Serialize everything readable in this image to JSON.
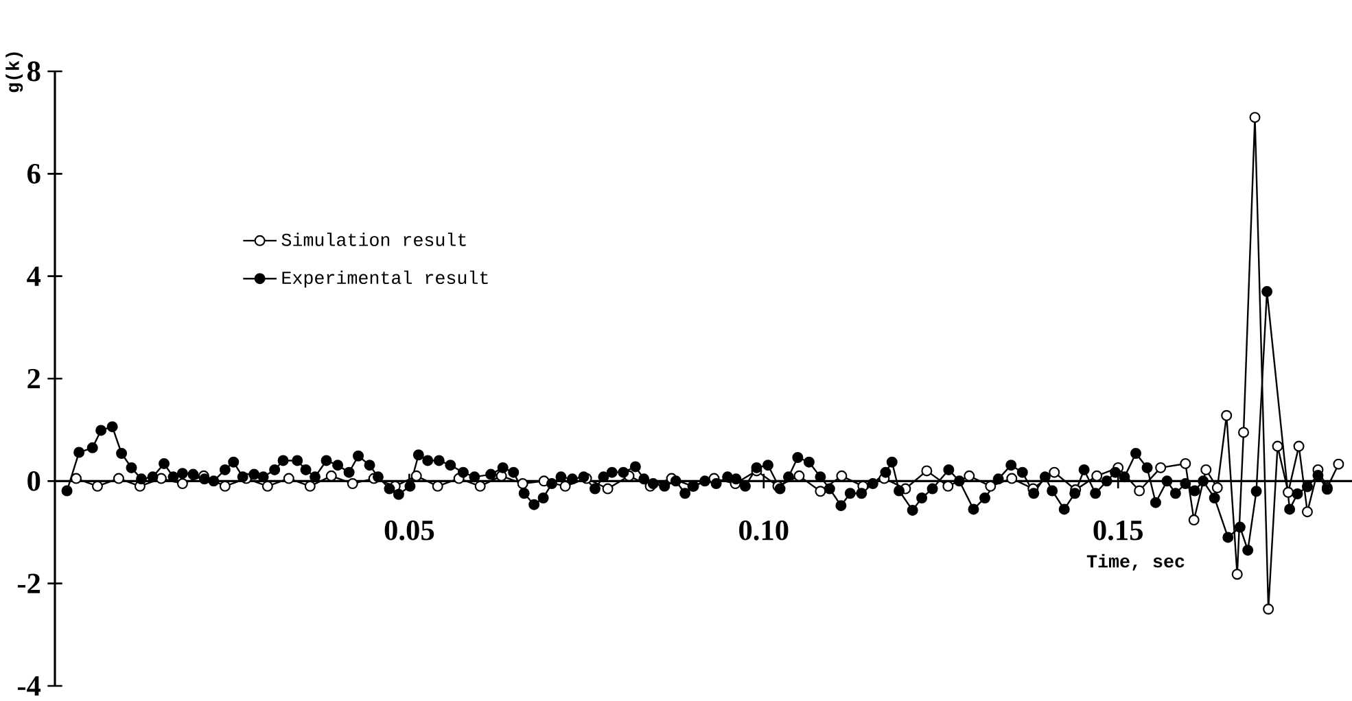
{
  "chart_data": {
    "type": "line",
    "xlabel": "Time, sec",
    "ylabel": "g(k)",
    "xlim": [
      0,
      0.183
    ],
    "ylim": [
      -4,
      8
    ],
    "xticks": [
      {
        "value": 0.05,
        "label": "0.05"
      },
      {
        "value": 0.1,
        "label": "0.10"
      },
      {
        "value": 0.15,
        "label": "0.15"
      }
    ],
    "yticks": [
      -4,
      -2,
      0,
      2,
      4,
      6,
      8
    ],
    "grid": false,
    "legend": "top left",
    "marker": "circle",
    "line_style": "solid",
    "series": [
      {
        "name": "Simulation result",
        "color": "#000000",
        "x": [
          0.003,
          0.006,
          0.009,
          0.012,
          0.015,
          0.018,
          0.021,
          0.024,
          0.027,
          0.03,
          0.033,
          0.036,
          0.039,
          0.042,
          0.045,
          0.048,
          0.051,
          0.054,
          0.057,
          0.06,
          0.063,
          0.066,
          0.069,
          0.072,
          0.075,
          0.078,
          0.081,
          0.084,
          0.087,
          0.09,
          0.093,
          0.096,
          0.099,
          0.102,
          0.105,
          0.108,
          0.111,
          0.114,
          0.117,
          0.12,
          0.123,
          0.126,
          0.129,
          0.132,
          0.135,
          0.138,
          0.141,
          0.144,
          0.147,
          0.15,
          0.153,
          0.156,
          0.1595,
          0.1607,
          0.1624,
          0.164,
          0.1653,
          0.1668,
          0.1677,
          0.1693,
          0.1712,
          0.1725,
          0.174,
          0.1755,
          0.1767,
          0.1782,
          0.1795,
          0.1811
        ],
        "values": [
          0.05,
          -0.1,
          0.05,
          -0.1,
          0.05,
          -0.05,
          0.1,
          -0.1,
          0.05,
          -0.1,
          0.05,
          -0.1,
          0.1,
          -0.05,
          0.05,
          -0.1,
          0.1,
          -0.1,
          0.05,
          -0.1,
          0.1,
          -0.05,
          0,
          -0.1,
          0.05,
          -0.15,
          0.1,
          -0.1,
          0.05,
          -0.1,
          0.05,
          -0.05,
          0.2,
          -0.1,
          0.1,
          -0.2,
          0.1,
          -0.1,
          0.05,
          -0.15,
          0.2,
          -0.1,
          0.1,
          -0.1,
          0.05,
          -0.15,
          0.17,
          -0.17,
          0.1,
          0.26,
          -0.19,
          0.26,
          0.34,
          -0.76,
          0.22,
          -0.13,
          1.28,
          -1.82,
          0.95,
          7.1,
          -2.5,
          0.68,
          -0.22,
          0.68,
          -0.6,
          0.22,
          -0.13,
          0.33
        ]
      },
      {
        "name": "Experimental result",
        "color": "#000000",
        "x": [
          0.0017,
          0.0034,
          0.0053,
          0.0065,
          0.0081,
          0.0094,
          0.0108,
          0.0122,
          0.0138,
          0.0154,
          0.0167,
          0.018,
          0.0195,
          0.0211,
          0.0224,
          0.024,
          0.0252,
          0.0265,
          0.0281,
          0.0294,
          0.031,
          0.0322,
          0.0342,
          0.0354,
          0.0367,
          0.0383,
          0.0399,
          0.0415,
          0.0428,
          0.0444,
          0.0456,
          0.0472,
          0.0485,
          0.0501,
          0.0513,
          0.0526,
          0.0542,
          0.0558,
          0.0576,
          0.0592,
          0.0615,
          0.0632,
          0.0647,
          0.0662,
          0.0676,
          0.0689,
          0.0701,
          0.0714,
          0.073,
          0.0746,
          0.0762,
          0.0774,
          0.0786,
          0.0802,
          0.0819,
          0.0831,
          0.0844,
          0.086,
          0.0876,
          0.0889,
          0.0901,
          0.0917,
          0.0933,
          0.0949,
          0.0961,
          0.0974,
          0.099,
          0.1006,
          0.1023,
          0.1035,
          0.1048,
          0.1064,
          0.108,
          0.1093,
          0.1109,
          0.1122,
          0.1138,
          0.1154,
          0.1172,
          0.1181,
          0.1191,
          0.121,
          0.1223,
          0.1238,
          0.1261,
          0.1276,
          0.1296,
          0.1312,
          0.1331,
          0.1349,
          0.1365,
          0.1381,
          0.1397,
          0.1407,
          0.1424,
          0.1439,
          0.1452,
          0.1468,
          0.1484,
          0.1496,
          0.1509,
          0.1525,
          0.1541,
          0.1553,
          0.1569,
          0.1581,
          0.1595,
          0.1608,
          0.162,
          0.1636,
          0.1655,
          0.1672,
          0.1683,
          0.1695,
          0.171,
          0.1742,
          0.1753,
          0.1767,
          0.1782,
          0.1795
        ],
        "values": [
          -0.19,
          0.56,
          0.65,
          0.99,
          1.06,
          0.54,
          0.26,
          0.04,
          0.08,
          0.34,
          0.08,
          0.15,
          0.13,
          0.04,
          0,
          0.22,
          0.37,
          0.08,
          0.13,
          0.08,
          0.22,
          0.4,
          0.4,
          0.22,
          0.08,
          0.4,
          0.31,
          0.17,
          0.49,
          0.31,
          0.08,
          -0.15,
          -0.26,
          -0.1,
          0.51,
          0.4,
          0.4,
          0.31,
          0.17,
          0.08,
          0.13,
          0.26,
          0.17,
          -0.24,
          -0.46,
          -0.33,
          -0.05,
          0.08,
          0.04,
          0.08,
          -0.15,
          0.08,
          0.17,
          0.17,
          0.28,
          0.04,
          -0.05,
          -0.1,
          0,
          -0.24,
          -0.1,
          0,
          -0.05,
          0.08,
          0.04,
          -0.1,
          0.26,
          0.31,
          -0.15,
          0.08,
          0.46,
          0.37,
          0.08,
          -0.15,
          -0.48,
          -0.24,
          -0.24,
          -0.05,
          0.17,
          0.37,
          -0.19,
          -0.57,
          -0.33,
          -0.15,
          0.22,
          0,
          -0.55,
          -0.33,
          0.04,
          0.31,
          0.17,
          -0.24,
          0.08,
          -0.19,
          -0.55,
          -0.24,
          0.22,
          -0.24,
          0,
          0.17,
          0.08,
          0.54,
          0.26,
          -0.42,
          0,
          -0.24,
          -0.05,
          -0.19,
          0,
          -0.33,
          -1.1,
          -0.9,
          -1.35,
          -0.2,
          3.7,
          -0.55,
          -0.25,
          -0.11,
          0.11,
          -0.16
        ]
      }
    ]
  }
}
